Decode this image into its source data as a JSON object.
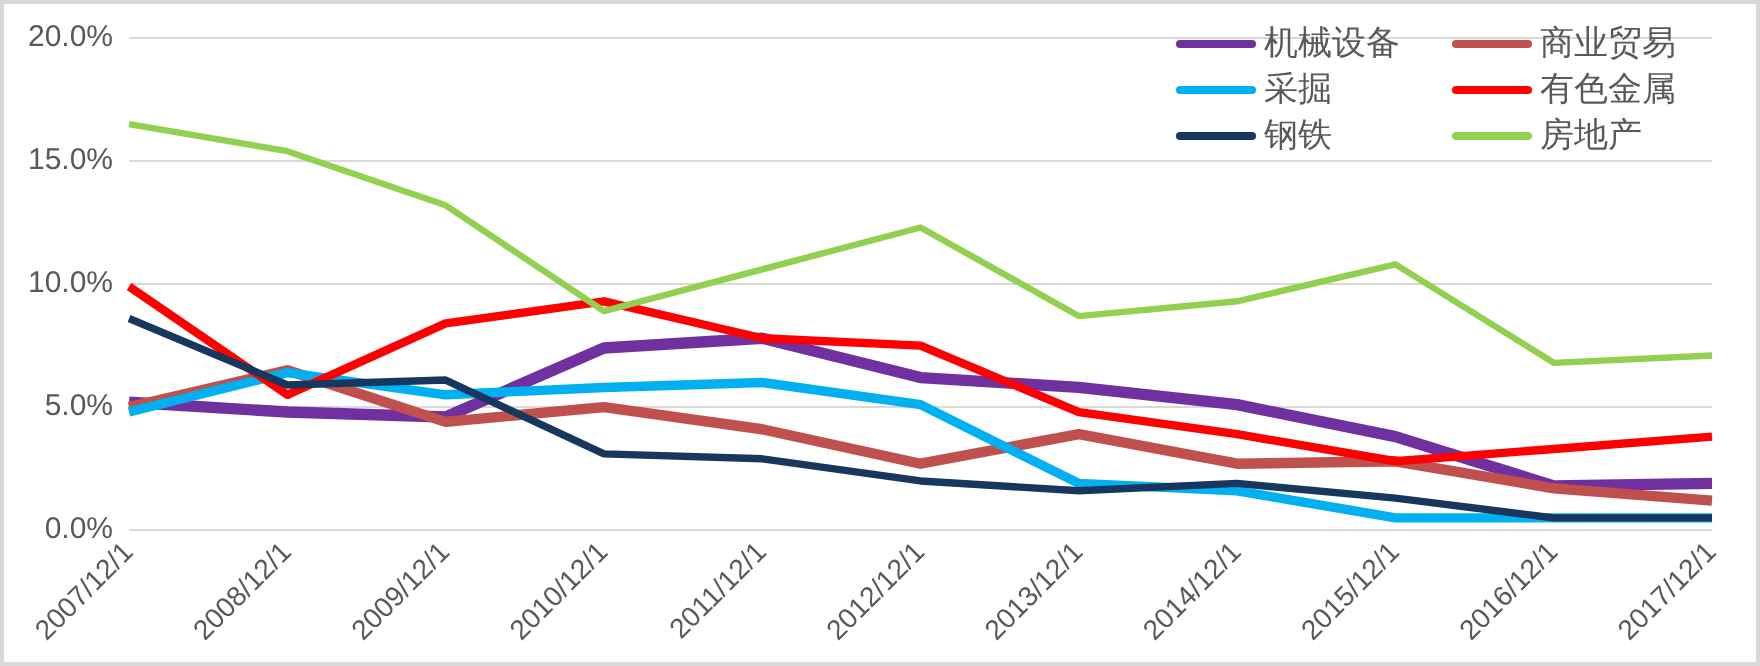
{
  "chart_data": {
    "type": "line",
    "categories": [
      "2007/12/1",
      "2008/12/1",
      "2009/12/1",
      "2010/12/1",
      "2011/12/1",
      "2012/12/1",
      "2013/12/1",
      "2014/12/1",
      "2015/12/1",
      "2016/12/1",
      "2017/12/1"
    ],
    "series": [
      {
        "name": "机械设备",
        "color": "#7030a0",
        "values": [
          5.2,
          4.8,
          4.6,
          7.4,
          7.8,
          6.2,
          5.8,
          5.1,
          3.8,
          1.8,
          1.9
        ]
      },
      {
        "name": "商业贸易",
        "color": "#c0504d",
        "values": [
          5.0,
          6.5,
          4.4,
          5.0,
          4.1,
          2.7,
          3.9,
          2.7,
          2.8,
          1.7,
          1.2
        ]
      },
      {
        "name": "采掘",
        "color": "#00b0f0",
        "values": [
          4.8,
          6.4,
          5.5,
          5.8,
          6.0,
          5.1,
          1.9,
          1.6,
          0.5,
          0.5,
          0.5
        ]
      },
      {
        "name": "有色金属",
        "color": "#ff0000",
        "values": [
          9.9,
          5.5,
          8.4,
          9.3,
          7.8,
          7.5,
          4.8,
          3.9,
          2.8,
          3.3,
          3.8
        ]
      },
      {
        "name": "钢铁",
        "color": "#17375e",
        "values": [
          8.6,
          5.9,
          6.1,
          3.1,
          2.9,
          2.0,
          1.6,
          1.9,
          1.3,
          0.5,
          0.5
        ]
      },
      {
        "name": "房地产",
        "color": "#92d050",
        "values": [
          16.5,
          15.4,
          13.2,
          8.9,
          10.6,
          12.3,
          8.7,
          9.3,
          10.8,
          6.8,
          7.1
        ]
      }
    ],
    "ylim": [
      0,
      20
    ],
    "yticks": [
      {
        "value": 0,
        "label": "0.0%"
      },
      {
        "value": 5,
        "label": "5.0%"
      },
      {
        "value": 10,
        "label": "10.0%"
      },
      {
        "value": 15,
        "label": "15.0%"
      },
      {
        "value": 20,
        "label": "20.0%"
      }
    ],
    "grid": "y",
    "legend": "top right",
    "marker": "none",
    "line_style": "solid"
  }
}
